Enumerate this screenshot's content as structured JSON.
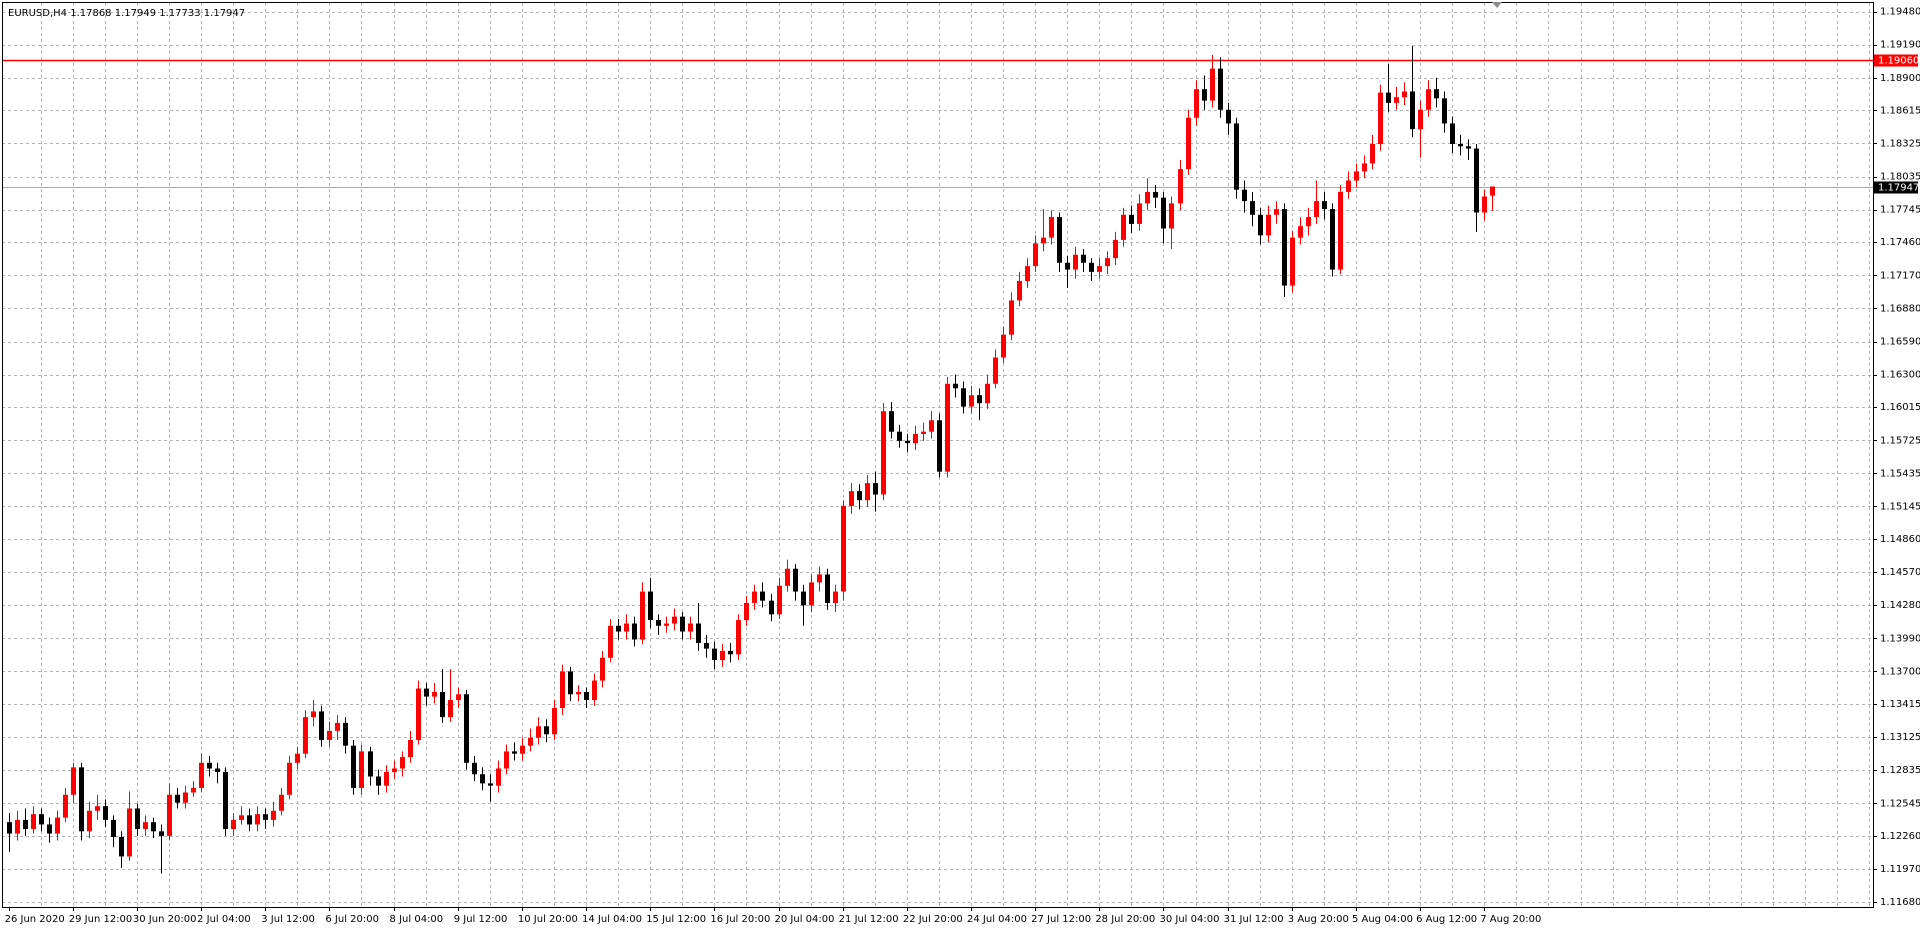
{
  "chart_data": {
    "type": "candlestick",
    "title": "EURUSD,H4  1.17868 1.17949 1.17733 1.17947",
    "categories": [
      "26 Jun 2020",
      null,
      null,
      null,
      null,
      null,
      null,
      null,
      "29 Jun 12:00",
      null,
      null,
      null,
      null,
      null,
      null,
      null,
      "30 Jun 20:00",
      null,
      null,
      null,
      null,
      null,
      null,
      null,
      "2 Jul 04:00",
      null,
      null,
      null,
      null,
      null,
      null,
      null,
      "3 Jul 12:00",
      null,
      null,
      null,
      null,
      null,
      null,
      null,
      "6 Jul 20:00",
      null,
      null,
      null,
      null,
      null,
      null,
      null,
      "8 Jul 04:00",
      null,
      null,
      null,
      null,
      null,
      null,
      null,
      "9 Jul 12:00",
      null,
      null,
      null,
      null,
      null,
      null,
      null,
      "10 Jul 20:00",
      null,
      null,
      null,
      null,
      null,
      null,
      null,
      "14 Jul 04:00",
      null,
      null,
      null,
      null,
      null,
      null,
      null,
      "15 Jul 12:00",
      null,
      null,
      null,
      null,
      null,
      null,
      null,
      "16 Jul 20:00",
      null,
      null,
      null,
      null,
      null,
      null,
      null,
      "20 Jul 04:00",
      null,
      null,
      null,
      null,
      null,
      null,
      null,
      "21 Jul 12:00",
      null,
      null,
      null,
      null,
      null,
      null,
      null,
      "22 Jul 20:00",
      null,
      null,
      null,
      null,
      null,
      null,
      null,
      "24 Jul 04:00",
      null,
      null,
      null,
      null,
      null,
      null,
      null,
      "27 Jul 12:00",
      null,
      null,
      null,
      null,
      null,
      null,
      null,
      "28 Jul 20:00",
      null,
      null,
      null,
      null,
      null,
      null,
      null,
      "30 Jul 04:00",
      null,
      null,
      null,
      null,
      null,
      null,
      null,
      "31 Jul 12:00",
      null,
      null,
      null,
      null,
      null,
      null,
      null,
      "3 Aug 20:00",
      null,
      null,
      null,
      null,
      null,
      null,
      null,
      "5 Aug 04:00",
      null,
      null,
      null,
      null,
      null,
      null,
      null,
      "6 Aug 12:00",
      null,
      null,
      null,
      null,
      null,
      null,
      null,
      "7 Aug 20:00",
      null
    ],
    "open": [
      1.1238,
      1.1228,
      1.124,
      1.1232,
      1.1245,
      1.1236,
      1.1228,
      1.1242,
      1.1262,
      1.1286,
      1.123,
      1.1248,
      1.1252,
      1.124,
      1.1225,
      1.1208,
      1.125,
      1.1232,
      1.1238,
      1.123,
      1.1226,
      1.1262,
      1.1255,
      1.1264,
      1.1268,
      1.129,
      1.1285,
      1.1282,
      1.1232,
      1.124,
      1.1244,
      1.1236,
      1.1245,
      1.124,
      1.1248,
      1.1262,
      1.129,
      1.1298,
      1.133,
      1.1335,
      1.131,
      1.1318,
      1.1325,
      1.1305,
      1.1268,
      1.13,
      1.1278,
      1.127,
      1.1282,
      1.1285,
      1.1295,
      1.131,
      1.1355,
      1.1348,
      1.1352,
      1.133,
      1.1345,
      1.135,
      1.129,
      1.128,
      1.1272,
      1.127,
      1.1285,
      1.13,
      1.1298,
      1.1305,
      1.1312,
      1.1322,
      1.1315,
      1.1338,
      1.137,
      1.135,
      1.1352,
      1.1345,
      1.1362,
      1.1382,
      1.141,
      1.1405,
      1.1412,
      1.1398,
      1.144,
      1.1415,
      1.141,
      1.1412,
      1.1418,
      1.1405,
      1.1412,
      1.1395,
      1.139,
      1.138,
      1.1388,
      1.1385,
      1.1415,
      1.143,
      1.144,
      1.1432,
      1.142,
      1.1445,
      1.146,
      1.144,
      1.1428,
      1.1448,
      1.1455,
      1.143,
      1.144,
      1.1515,
      1.1528,
      1.152,
      1.1535,
      1.1525,
      1.1598,
      1.158,
      1.1572,
      1.157,
      1.1578,
      1.158,
      1.159,
      1.1545,
      1.1622,
      1.1618,
      1.1602,
      1.1612,
      1.1605,
      1.1622,
      1.1645,
      1.1665,
      1.1695,
      1.1712,
      1.1725,
      1.1745,
      1.175,
      1.1768,
      1.1728,
      1.1722,
      1.1735,
      1.1728,
      1.172,
      1.1725,
      1.1732,
      1.1748,
      1.177,
      1.1762,
      1.178,
      1.179,
      1.1785,
      1.1758,
      1.178,
      1.181,
      1.1855,
      1.188,
      1.187,
      1.1898,
      1.1862,
      1.185,
      1.1792,
      1.1782,
      1.177,
      1.1752,
      1.177,
      1.1775,
      1.1708,
      1.175,
      1.176,
      1.1768,
      1.1782,
      1.1775,
      1.1722,
      1.179,
      1.18,
      1.1808,
      1.1815,
      1.1832,
      1.1877,
      1.1868,
      1.1873,
      1.1878,
      1.1845,
      1.1862,
      1.188,
      1.1872,
      1.185,
      1.1832,
      1.183,
      1.1828,
      1.1772,
      1.17868
    ],
    "high": [
      1.1246,
      1.1248,
      1.125,
      1.1252,
      1.125,
      1.1242,
      1.1248,
      1.1268,
      1.129,
      1.129,
      1.1256,
      1.1262,
      1.1258,
      1.1244,
      1.123,
      1.1265,
      1.1254,
      1.1244,
      1.1242,
      1.1236,
      1.1272,
      1.1268,
      1.127,
      1.1274,
      1.1298,
      1.1296,
      1.129,
      1.1286,
      1.1246,
      1.1252,
      1.125,
      1.1252,
      1.125,
      1.1256,
      1.1268,
      1.1296,
      1.1304,
      1.1336,
      1.1345,
      1.134,
      1.1326,
      1.1332,
      1.133,
      1.131,
      1.1306,
      1.1304,
      1.1284,
      1.1288,
      1.1292,
      1.13,
      1.1318,
      1.1362,
      1.136,
      1.136,
      1.1372,
      1.1372,
      1.1356,
      1.1354,
      1.1296,
      1.1286,
      1.128,
      1.1292,
      1.1306,
      1.1308,
      1.1312,
      1.132,
      1.133,
      1.1328,
      1.1345,
      1.1376,
      1.1374,
      1.1358,
      1.1356,
      1.1368,
      1.1388,
      1.1416,
      1.1416,
      1.142,
      1.1418,
      1.1448,
      1.1452,
      1.142,
      1.1418,
      1.1425,
      1.1422,
      1.1418,
      1.143,
      1.1402,
      1.1396,
      1.1394,
      1.1395,
      1.142,
      1.1436,
      1.1446,
      1.1448,
      1.1438,
      1.1452,
      1.1468,
      1.1464,
      1.1446,
      1.1455,
      1.1462,
      1.146,
      1.1446,
      1.152,
      1.1535,
      1.1534,
      1.1542,
      1.1545,
      1.1605,
      1.1606,
      1.1586,
      1.1578,
      1.1585,
      1.1588,
      1.1598,
      1.1596,
      1.1628,
      1.163,
      1.1624,
      1.162,
      1.1618,
      1.163,
      1.1652,
      1.1672,
      1.1702,
      1.172,
      1.1732,
      1.1752,
      1.1775,
      1.1774,
      1.1772,
      1.1734,
      1.1742,
      1.174,
      1.1732,
      1.1732,
      1.1738,
      1.1755,
      1.1776,
      1.1778,
      1.1788,
      1.1802,
      1.1796,
      1.179,
      1.1786,
      1.1818,
      1.1862,
      1.1888,
      1.1892,
      1.191,
      1.1908,
      1.1868,
      1.1855,
      1.18,
      1.179,
      1.1776,
      1.1778,
      1.1782,
      1.178,
      1.1756,
      1.1768,
      1.1776,
      1.18,
      1.179,
      1.178,
      1.1796,
      1.1808,
      1.1815,
      1.1822,
      1.184,
      1.1884,
      1.1902,
      1.1882,
      1.1886,
      1.1918,
      1.187,
      1.1888,
      1.189,
      1.1878,
      1.1856,
      1.184,
      1.1836,
      1.1832,
      1.1792,
      1.17949
    ],
    "low": [
      1.1212,
      1.1222,
      1.1226,
      1.1228,
      1.123,
      1.122,
      1.1222,
      1.1238,
      1.1255,
      1.1222,
      1.1224,
      1.124,
      1.1234,
      1.1216,
      1.1198,
      1.1204,
      1.1226,
      1.1226,
      1.1224,
      1.1193,
      1.1222,
      1.125,
      1.125,
      1.126,
      1.1264,
      1.1278,
      1.1272,
      1.1226,
      1.1226,
      1.1236,
      1.123,
      1.123,
      1.1232,
      1.1234,
      1.1244,
      1.1258,
      1.1284,
      1.1294,
      1.1322,
      1.1304,
      1.1304,
      1.131,
      1.1298,
      1.1262,
      1.1262,
      1.127,
      1.1262,
      1.1264,
      1.1276,
      1.1278,
      1.129,
      1.1306,
      1.134,
      1.1342,
      1.1325,
      1.1326,
      1.1338,
      1.1284,
      1.1274,
      1.1266,
      1.1256,
      1.1264,
      1.128,
      1.1292,
      1.1292,
      1.13,
      1.1306,
      1.1308,
      1.131,
      1.1332,
      1.1344,
      1.1344,
      1.1338,
      1.134,
      1.1356,
      1.1378,
      1.1398,
      1.1398,
      1.1392,
      1.1394,
      1.1408,
      1.1402,
      1.1404,
      1.1406,
      1.1398,
      1.1398,
      1.1388,
      1.1382,
      1.1372,
      1.1374,
      1.1378,
      1.138,
      1.141,
      1.1424,
      1.1426,
      1.1414,
      1.1416,
      1.144,
      1.1432,
      1.141,
      1.1422,
      1.144,
      1.1424,
      1.1422,
      1.1432,
      1.1508,
      1.1512,
      1.1514,
      1.151,
      1.152,
      1.1574,
      1.1566,
      1.1562,
      1.1564,
      1.1572,
      1.1574,
      1.154,
      1.154,
      1.161,
      1.1596,
      1.1596,
      1.159,
      1.16,
      1.1618,
      1.164,
      1.166,
      1.169,
      1.1706,
      1.172,
      1.1738,
      1.1744,
      1.172,
      1.1706,
      1.1714,
      1.172,
      1.1712,
      1.1714,
      1.1718,
      1.1726,
      1.1742,
      1.1754,
      1.1756,
      1.1774,
      1.1776,
      1.1745,
      1.174,
      1.1774,
      1.1805,
      1.1848,
      1.1862,
      1.1864,
      1.1855,
      1.184,
      1.1784,
      1.1772,
      1.176,
      1.1744,
      1.1746,
      1.1762,
      1.1698,
      1.1702,
      1.1744,
      1.1752,
      1.1762,
      1.1766,
      1.1716,
      1.1718,
      1.1784,
      1.1794,
      1.1802,
      1.181,
      1.1826,
      1.186,
      1.1862,
      1.1866,
      1.1838,
      1.182,
      1.1856,
      1.1864,
      1.1842,
      1.1824,
      1.1822,
      1.1818,
      1.1755,
      1.1765,
      1.17733
    ],
    "close": [
      1.1228,
      1.124,
      1.1232,
      1.1245,
      1.1236,
      1.1228,
      1.1242,
      1.1262,
      1.1286,
      1.123,
      1.1248,
      1.1252,
      1.124,
      1.1225,
      1.1208,
      1.125,
      1.1232,
      1.1238,
      1.123,
      1.1226,
      1.1262,
      1.1255,
      1.1264,
      1.1268,
      1.129,
      1.1285,
      1.1282,
      1.1232,
      1.124,
      1.1244,
      1.1236,
      1.1245,
      1.124,
      1.1248,
      1.1262,
      1.129,
      1.1298,
      1.133,
      1.1335,
      1.131,
      1.1318,
      1.1325,
      1.1305,
      1.1268,
      1.13,
      1.1278,
      1.127,
      1.1282,
      1.1285,
      1.1295,
      1.131,
      1.1355,
      1.1348,
      1.1352,
      1.133,
      1.1345,
      1.135,
      1.129,
      1.128,
      1.1272,
      1.127,
      1.1285,
      1.13,
      1.1298,
      1.1305,
      1.1312,
      1.1322,
      1.1315,
      1.1338,
      1.137,
      1.135,
      1.1352,
      1.1345,
      1.1362,
      1.1382,
      1.141,
      1.1405,
      1.1412,
      1.1398,
      1.144,
      1.1415,
      1.141,
      1.1412,
      1.1418,
      1.1405,
      1.1412,
      1.1395,
      1.139,
      1.138,
      1.1388,
      1.1385,
      1.1415,
      1.143,
      1.144,
      1.1432,
      1.142,
      1.1445,
      1.146,
      1.144,
      1.1428,
      1.1448,
      1.1455,
      1.143,
      1.144,
      1.1515,
      1.1528,
      1.152,
      1.1535,
      1.1525,
      1.1598,
      1.158,
      1.1572,
      1.157,
      1.1578,
      1.158,
      1.159,
      1.1545,
      1.1622,
      1.1618,
      1.1602,
      1.1612,
      1.1605,
      1.1622,
      1.1645,
      1.1665,
      1.1695,
      1.1712,
      1.1725,
      1.1745,
      1.175,
      1.1768,
      1.1728,
      1.1722,
      1.1735,
      1.1728,
      1.172,
      1.1725,
      1.1732,
      1.1748,
      1.177,
      1.1762,
      1.178,
      1.179,
      1.1785,
      1.1758,
      1.178,
      1.181,
      1.1855,
      1.188,
      1.187,
      1.1898,
      1.1862,
      1.185,
      1.1792,
      1.1782,
      1.177,
      1.1752,
      1.177,
      1.1775,
      1.1708,
      1.175,
      1.176,
      1.1768,
      1.1782,
      1.1775,
      1.1722,
      1.179,
      1.18,
      1.1808,
      1.1815,
      1.1832,
      1.1877,
      1.1868,
      1.1873,
      1.1878,
      1.1845,
      1.1862,
      1.188,
      1.1872,
      1.185,
      1.1832,
      1.183,
      1.1828,
      1.1772,
      1.1786,
      1.17947
    ],
    "up_color": "#ff0000",
    "down_color": "#000000",
    "ylim": [
      1.11637,
      1.19555
    ],
    "yticks": [
      {
        "value": 1.1948,
        "label": "1.19480"
      },
      {
        "value": 1.1919,
        "label": "1.19190"
      },
      {
        "value": 1.189,
        "label": "1.18900"
      },
      {
        "value": 1.18615,
        "label": "1.18615"
      },
      {
        "value": 1.18325,
        "label": "1.18325"
      },
      {
        "value": 1.18035,
        "label": "1.18035"
      },
      {
        "value": 1.17745,
        "label": "1.17745"
      },
      {
        "value": 1.1746,
        "label": "1.17460"
      },
      {
        "value": 1.1717,
        "label": "1.17170"
      },
      {
        "value": 1.1688,
        "label": "1.16880"
      },
      {
        "value": 1.1659,
        "label": "1.16590"
      },
      {
        "value": 1.163,
        "label": "1.16300"
      },
      {
        "value": 1.16015,
        "label": "1.16015"
      },
      {
        "value": 1.15725,
        "label": "1.15725"
      },
      {
        "value": 1.15435,
        "label": "1.15435"
      },
      {
        "value": 1.15145,
        "label": "1.15145"
      },
      {
        "value": 1.1486,
        "label": "1.14860"
      },
      {
        "value": 1.1457,
        "label": "1.14570"
      },
      {
        "value": 1.1428,
        "label": "1.14280"
      },
      {
        "value": 1.1399,
        "label": "1.13990"
      },
      {
        "value": 1.137,
        "label": "1.13700"
      },
      {
        "value": 1.13415,
        "label": "1.13415"
      },
      {
        "value": 1.13125,
        "label": "1.13125"
      },
      {
        "value": 1.12835,
        "label": "1.12835"
      },
      {
        "value": 1.12545,
        "label": "1.12545"
      },
      {
        "value": 1.1226,
        "label": "1.12260"
      },
      {
        "value": 1.1197,
        "label": "1.11970"
      },
      {
        "value": 1.1168,
        "label": "1.11680"
      }
    ],
    "grid": true,
    "lines": [
      {
        "value": 1.1906,
        "label": "1.19060",
        "color": "#ff0000",
        "box_color": "#ff0000"
      },
      {
        "value": 1.17947,
        "label": "1.17947",
        "color": "#a9a9a9",
        "box_color": "#000000"
      }
    ]
  }
}
